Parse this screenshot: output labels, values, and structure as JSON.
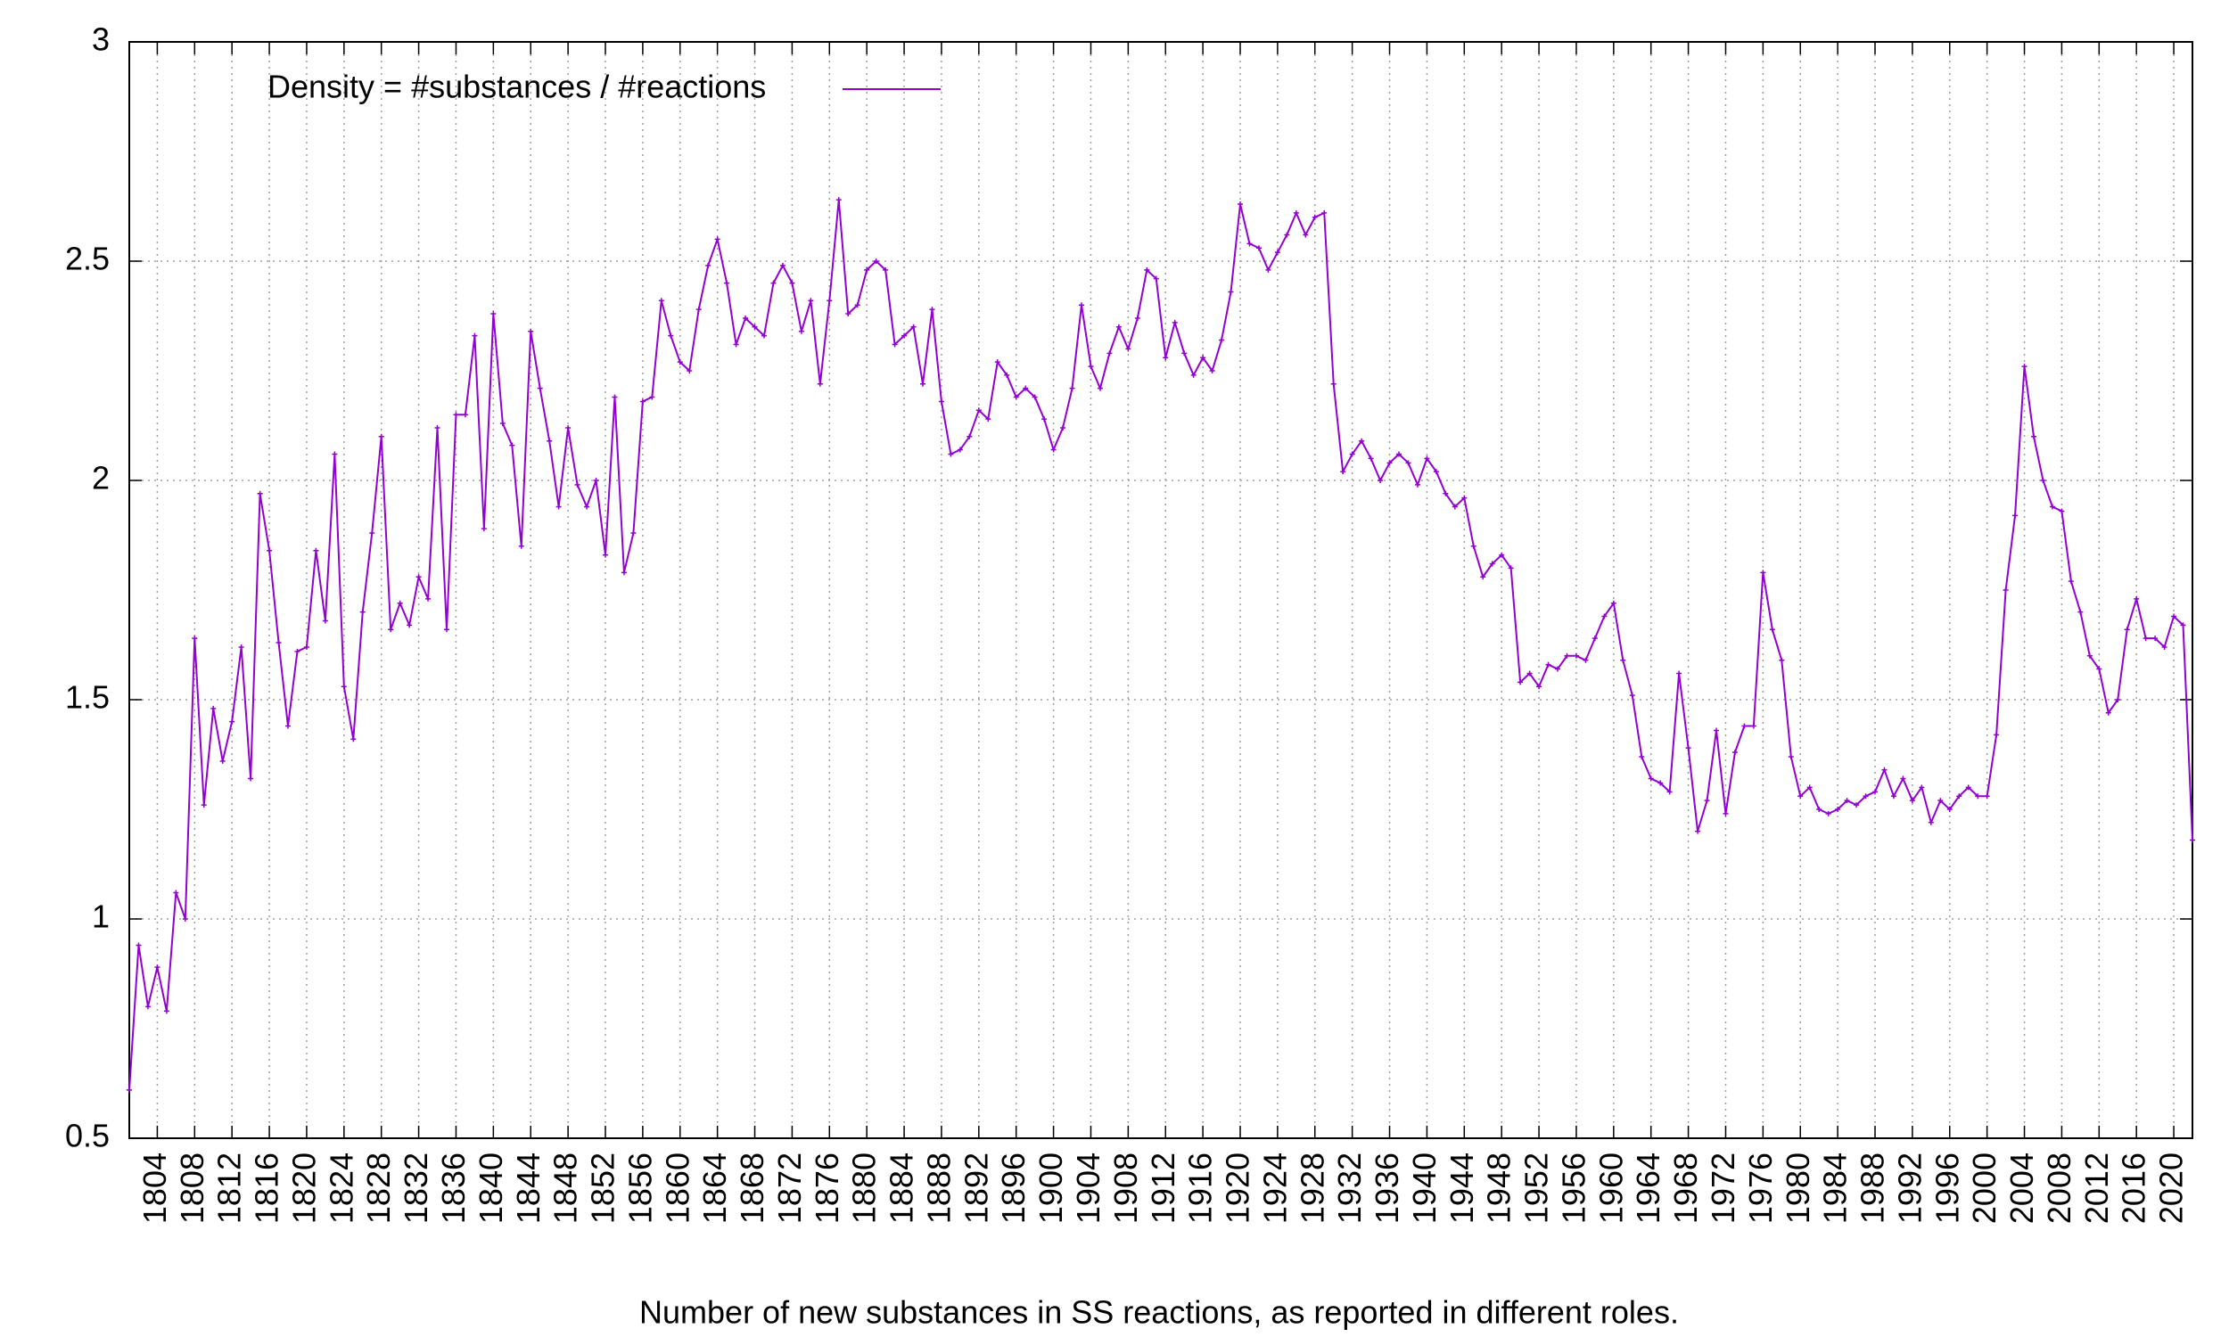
{
  "chart_data": {
    "type": "line",
    "xlabel": "Number of new substances in SS reactions, as reported in different roles.",
    "x": [
      1801,
      1802,
      1803,
      1804,
      1805,
      1806,
      1807,
      1808,
      1809,
      1810,
      1811,
      1812,
      1813,
      1814,
      1815,
      1816,
      1817,
      1818,
      1819,
      1820,
      1821,
      1822,
      1823,
      1824,
      1825,
      1826,
      1827,
      1828,
      1829,
      1830,
      1831,
      1832,
      1833,
      1834,
      1835,
      1836,
      1837,
      1838,
      1839,
      1840,
      1841,
      1842,
      1843,
      1844,
      1845,
      1846,
      1847,
      1848,
      1849,
      1850,
      1851,
      1852,
      1853,
      1854,
      1855,
      1856,
      1857,
      1858,
      1859,
      1860,
      1861,
      1862,
      1863,
      1864,
      1865,
      1866,
      1867,
      1868,
      1869,
      1870,
      1871,
      1872,
      1873,
      1874,
      1875,
      1876,
      1877,
      1878,
      1879,
      1880,
      1881,
      1882,
      1883,
      1884,
      1885,
      1886,
      1887,
      1888,
      1889,
      1890,
      1891,
      1892,
      1893,
      1894,
      1895,
      1896,
      1897,
      1898,
      1899,
      1900,
      1901,
      1902,
      1903,
      1904,
      1905,
      1906,
      1907,
      1908,
      1909,
      1910,
      1911,
      1912,
      1913,
      1914,
      1915,
      1916,
      1917,
      1918,
      1919,
      1920,
      1921,
      1922,
      1923,
      1924,
      1925,
      1926,
      1927,
      1928,
      1929,
      1930,
      1931,
      1932,
      1933,
      1934,
      1935,
      1936,
      1937,
      1938,
      1939,
      1940,
      1941,
      1942,
      1943,
      1944,
      1945,
      1946,
      1947,
      1948,
      1949,
      1950,
      1951,
      1952,
      1953,
      1954,
      1955,
      1956,
      1957,
      1958,
      1959,
      1960,
      1961,
      1962,
      1963,
      1964,
      1965,
      1966,
      1967,
      1968,
      1969,
      1970,
      1971,
      1972,
      1973,
      1974,
      1975,
      1976,
      1977,
      1978,
      1979,
      1980,
      1981,
      1982,
      1983,
      1984,
      1985,
      1986,
      1987,
      1988,
      1989,
      1990,
      1991,
      1992,
      1993,
      1994,
      1995,
      1996,
      1997,
      1998,
      1999,
      2000,
      2001,
      2002,
      2003,
      2004,
      2005,
      2006,
      2007,
      2008,
      2009,
      2010,
      2011,
      2012,
      2013,
      2014,
      2015,
      2016,
      2017,
      2018,
      2019,
      2020,
      2021,
      2022
    ],
    "series": [
      {
        "name": "Density = #substances / #reactions",
        "color": "#9400d3",
        "values": [
          0.61,
          0.94,
          0.8,
          0.89,
          0.79,
          1.06,
          1.0,
          1.64,
          1.26,
          1.48,
          1.36,
          1.45,
          1.62,
          1.32,
          1.97,
          1.84,
          1.63,
          1.44,
          1.61,
          1.62,
          1.84,
          1.68,
          2.06,
          1.53,
          1.41,
          1.7,
          1.88,
          2.1,
          1.66,
          1.72,
          1.67,
          1.78,
          1.73,
          2.12,
          1.66,
          2.15,
          2.15,
          2.33,
          1.89,
          2.38,
          2.13,
          2.08,
          1.85,
          2.34,
          2.21,
          2.09,
          1.94,
          2.12,
          1.99,
          1.94,
          2.0,
          1.83,
          2.19,
          1.79,
          1.88,
          2.18,
          2.19,
          2.41,
          2.33,
          2.27,
          2.25,
          2.39,
          2.49,
          2.55,
          2.45,
          2.31,
          2.37,
          2.35,
          2.33,
          2.45,
          2.49,
          2.45,
          2.34,
          2.41,
          2.22,
          2.41,
          2.64,
          2.38,
          2.4,
          2.48,
          2.5,
          2.48,
          2.31,
          2.33,
          2.35,
          2.22,
          2.39,
          2.18,
          2.06,
          2.07,
          2.1,
          2.16,
          2.14,
          2.27,
          2.24,
          2.19,
          2.21,
          2.19,
          2.14,
          2.07,
          2.12,
          2.21,
          2.4,
          2.26,
          2.21,
          2.29,
          2.35,
          2.3,
          2.37,
          2.48,
          2.46,
          2.28,
          2.36,
          2.29,
          2.24,
          2.28,
          2.25,
          2.32,
          2.43,
          2.63,
          2.54,
          2.53,
          2.48,
          2.52,
          2.56,
          2.61,
          2.56,
          2.6,
          2.61,
          2.22,
          2.02,
          2.06,
          2.09,
          2.05,
          2.0,
          2.04,
          2.06,
          2.04,
          1.99,
          2.05,
          2.02,
          1.97,
          1.94,
          1.96,
          1.85,
          1.78,
          1.81,
          1.83,
          1.8,
          1.54,
          1.56,
          1.53,
          1.58,
          1.57,
          1.6,
          1.6,
          1.59,
          1.64,
          1.69,
          1.72,
          1.59,
          1.51,
          1.37,
          1.32,
          1.31,
          1.29,
          1.56,
          1.39,
          1.2,
          1.27,
          1.43,
          1.24,
          1.38,
          1.44,
          1.44,
          1.79,
          1.66,
          1.59,
          1.37,
          1.28,
          1.3,
          1.25,
          1.24,
          1.25,
          1.27,
          1.26,
          1.28,
          1.29,
          1.34,
          1.28,
          1.32,
          1.27,
          1.3,
          1.22,
          1.27,
          1.25,
          1.28,
          1.3,
          1.28,
          1.28,
          1.42,
          1.75,
          1.92,
          2.26,
          2.1,
          2.0,
          1.94,
          1.93,
          1.77,
          1.7,
          1.6,
          1.57,
          1.47,
          1.5,
          1.66,
          1.73,
          1.64,
          1.64,
          1.62,
          1.69,
          1.67,
          1.18
        ]
      }
    ],
    "xlim": [
      1801,
      2022
    ],
    "ylim": [
      0.5,
      3
    ],
    "xticks": [
      1804,
      1808,
      1812,
      1816,
      1820,
      1824,
      1828,
      1832,
      1836,
      1840,
      1844,
      1848,
      1852,
      1856,
      1860,
      1864,
      1868,
      1872,
      1876,
      1880,
      1884,
      1888,
      1892,
      1896,
      1900,
      1904,
      1908,
      1912,
      1916,
      1920,
      1924,
      1928,
      1932,
      1936,
      1940,
      1944,
      1948,
      1952,
      1956,
      1960,
      1964,
      1968,
      1972,
      1976,
      1980,
      1984,
      1988,
      1992,
      1996,
      2000,
      2004,
      2008,
      2012,
      2016,
      2020
    ],
    "yticks": [
      0.5,
      1,
      1.5,
      2,
      2.5,
      3
    ],
    "grid": true,
    "legend": "top-left"
  }
}
